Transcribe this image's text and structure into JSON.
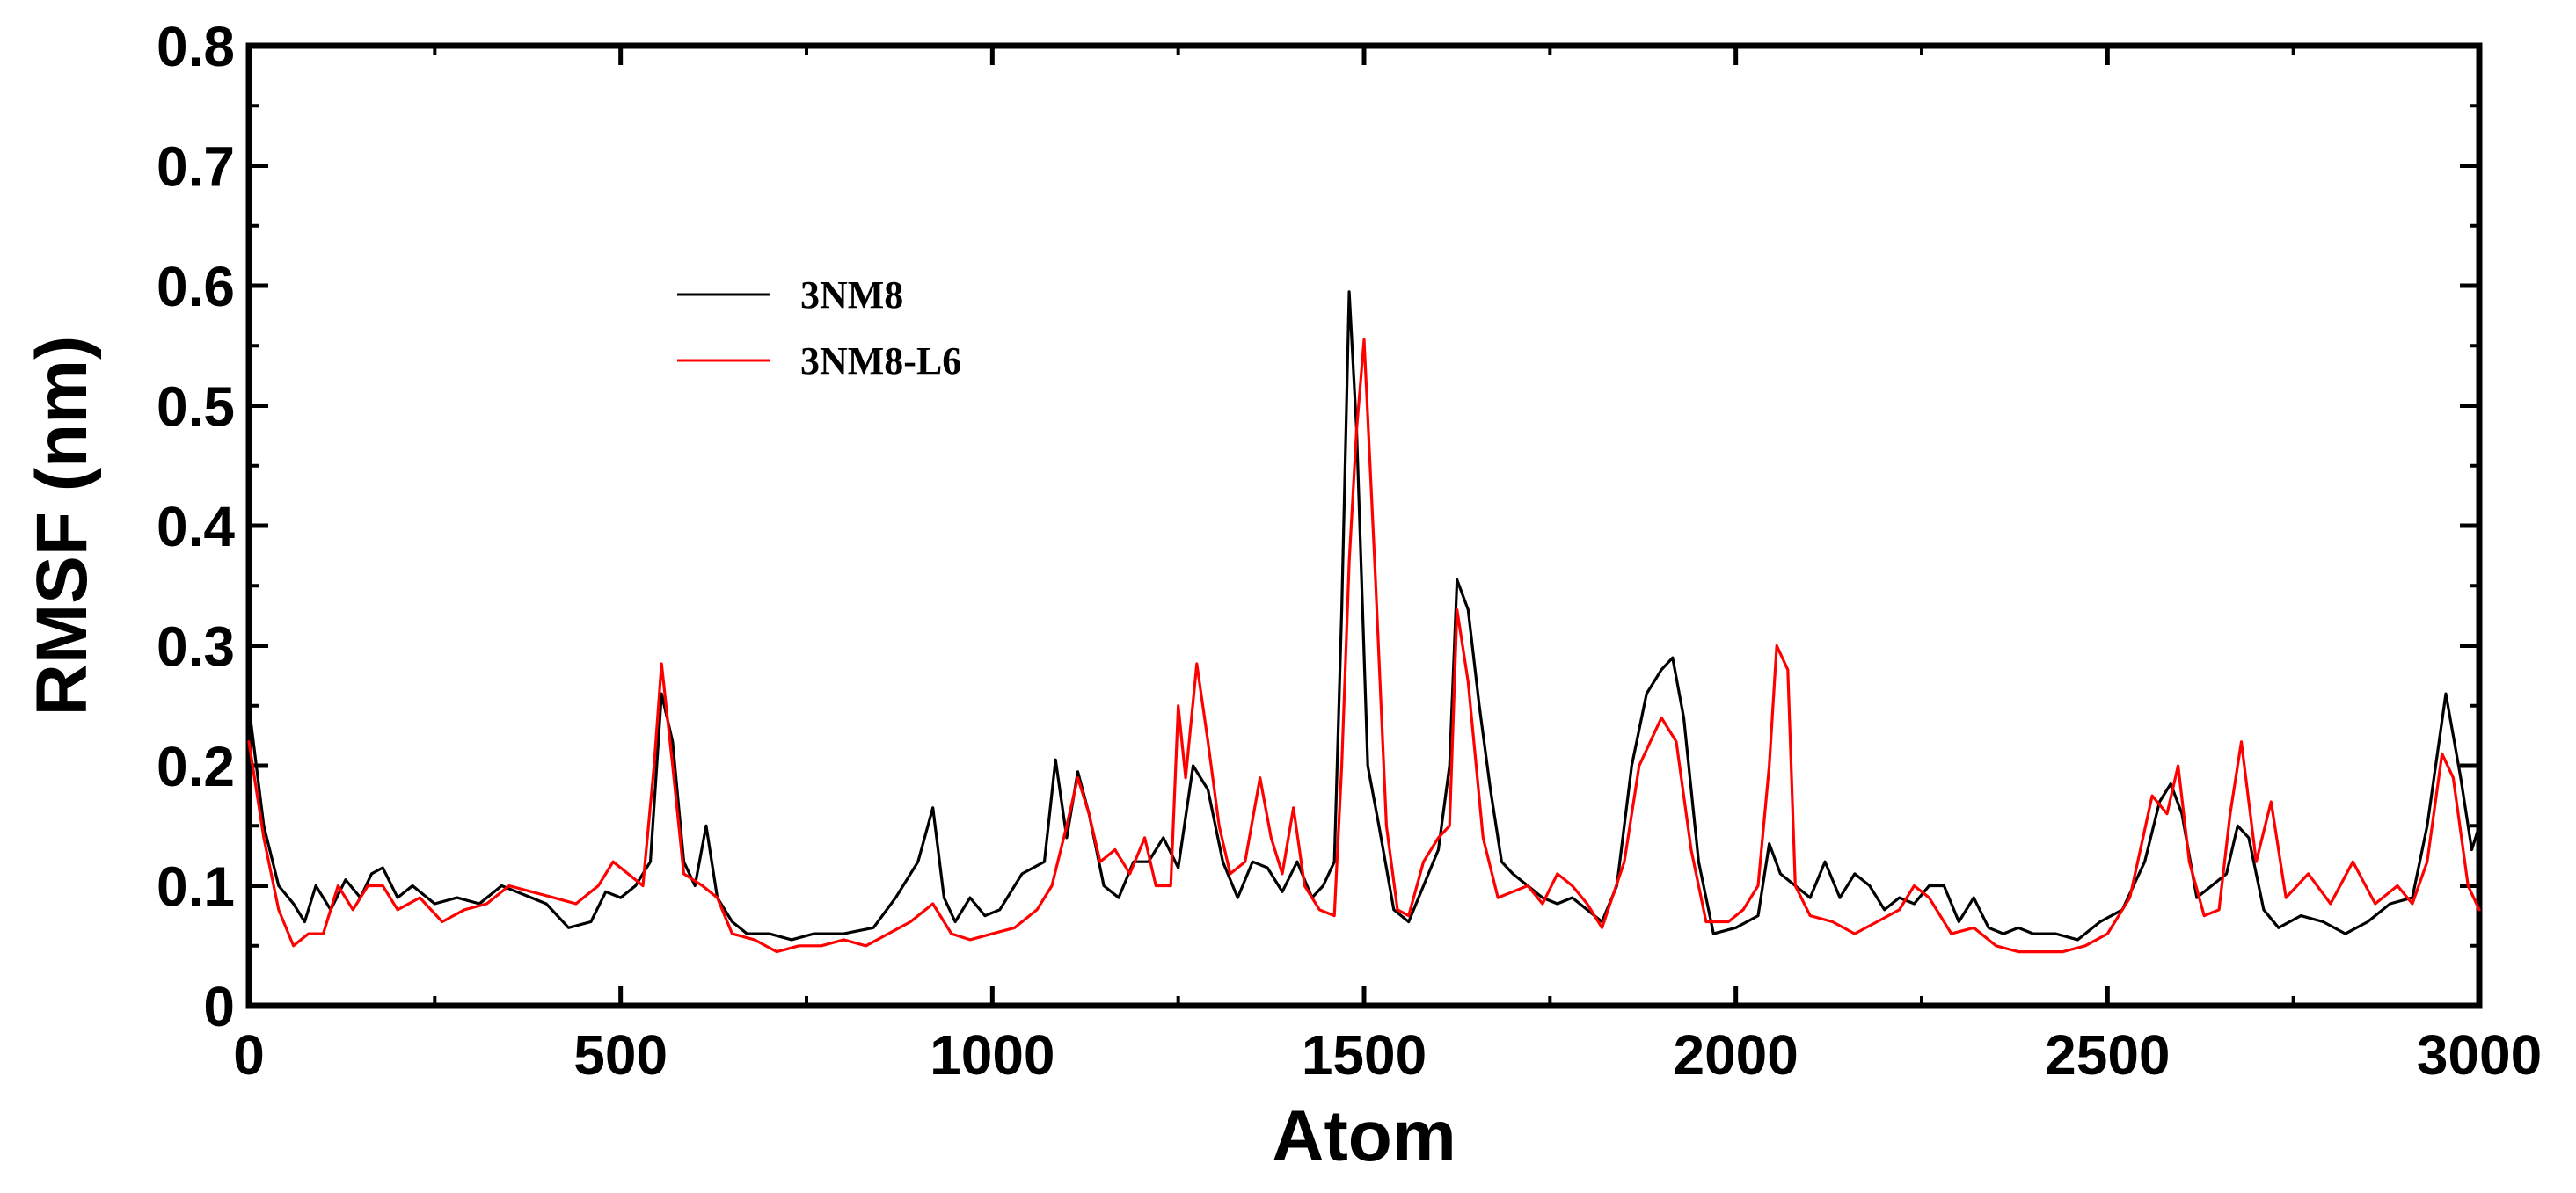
{
  "chart_data": {
    "type": "line",
    "title": "",
    "xlabel": "Atom",
    "ylabel": "RMSF (nm)",
    "xlim": [
      0,
      3000
    ],
    "ylim": [
      0,
      0.8
    ],
    "xticks": [
      0,
      500,
      1000,
      1500,
      2000,
      2500,
      3000
    ],
    "xtick_labels": [
      "0",
      "500",
      "1000",
      "1500",
      "2000",
      "2500",
      "3000"
    ],
    "yticks": [
      0,
      0.1,
      0.2,
      0.3,
      0.4,
      0.5,
      0.6,
      0.7,
      0.8
    ],
    "ytick_labels": [
      "0",
      "0.1",
      "0.2",
      "0.3",
      "0.4",
      "0.5",
      "0.6",
      "0.7",
      "0.8"
    ],
    "legend_position": "upper-left",
    "series": [
      {
        "name": "3NM8",
        "color": "#000000",
        "points": [
          [
            0,
            0.25
          ],
          [
            20,
            0.15
          ],
          [
            40,
            0.1
          ],
          [
            60,
            0.085
          ],
          [
            75,
            0.07
          ],
          [
            90,
            0.1
          ],
          [
            110,
            0.08
          ],
          [
            130,
            0.105
          ],
          [
            150,
            0.09
          ],
          [
            165,
            0.11
          ],
          [
            180,
            0.115
          ],
          [
            200,
            0.09
          ],
          [
            220,
            0.1
          ],
          [
            250,
            0.085
          ],
          [
            280,
            0.09
          ],
          [
            310,
            0.085
          ],
          [
            340,
            0.1
          ],
          [
            360,
            0.095
          ],
          [
            380,
            0.09
          ],
          [
            400,
            0.085
          ],
          [
            430,
            0.065
          ],
          [
            460,
            0.07
          ],
          [
            480,
            0.095
          ],
          [
            500,
            0.09
          ],
          [
            520,
            0.1
          ],
          [
            540,
            0.12
          ],
          [
            555,
            0.26
          ],
          [
            570,
            0.22
          ],
          [
            585,
            0.12
          ],
          [
            600,
            0.1
          ],
          [
            615,
            0.15
          ],
          [
            630,
            0.09
          ],
          [
            650,
            0.07
          ],
          [
            670,
            0.06
          ],
          [
            700,
            0.06
          ],
          [
            730,
            0.055
          ],
          [
            760,
            0.06
          ],
          [
            800,
            0.06
          ],
          [
            840,
            0.065
          ],
          [
            870,
            0.09
          ],
          [
            900,
            0.12
          ],
          [
            920,
            0.165
          ],
          [
            935,
            0.09
          ],
          [
            950,
            0.07
          ],
          [
            970,
            0.09
          ],
          [
            990,
            0.075
          ],
          [
            1010,
            0.08
          ],
          [
            1040,
            0.11
          ],
          [
            1070,
            0.12
          ],
          [
            1085,
            0.205
          ],
          [
            1100,
            0.14
          ],
          [
            1115,
            0.195
          ],
          [
            1130,
            0.16
          ],
          [
            1150,
            0.1
          ],
          [
            1170,
            0.09
          ],
          [
            1190,
            0.12
          ],
          [
            1210,
            0.12
          ],
          [
            1230,
            0.14
          ],
          [
            1250,
            0.115
          ],
          [
            1270,
            0.2
          ],
          [
            1290,
            0.18
          ],
          [
            1310,
            0.12
          ],
          [
            1330,
            0.09
          ],
          [
            1350,
            0.12
          ],
          [
            1370,
            0.115
          ],
          [
            1390,
            0.095
          ],
          [
            1410,
            0.12
          ],
          [
            1430,
            0.09
          ],
          [
            1445,
            0.1
          ],
          [
            1460,
            0.12
          ],
          [
            1470,
            0.33
          ],
          [
            1480,
            0.595
          ],
          [
            1490,
            0.48
          ],
          [
            1505,
            0.2
          ],
          [
            1520,
            0.15
          ],
          [
            1540,
            0.08
          ],
          [
            1560,
            0.07
          ],
          [
            1580,
            0.1
          ],
          [
            1600,
            0.13
          ],
          [
            1615,
            0.2
          ],
          [
            1625,
            0.355
          ],
          [
            1640,
            0.33
          ],
          [
            1655,
            0.25
          ],
          [
            1670,
            0.18
          ],
          [
            1685,
            0.12
          ],
          [
            1700,
            0.11
          ],
          [
            1720,
            0.1
          ],
          [
            1740,
            0.09
          ],
          [
            1760,
            0.085
          ],
          [
            1780,
            0.09
          ],
          [
            1800,
            0.08
          ],
          [
            1820,
            0.07
          ],
          [
            1840,
            0.1
          ],
          [
            1860,
            0.2
          ],
          [
            1880,
            0.26
          ],
          [
            1900,
            0.28
          ],
          [
            1915,
            0.29
          ],
          [
            1930,
            0.24
          ],
          [
            1950,
            0.12
          ],
          [
            1970,
            0.06
          ],
          [
            2000,
            0.065
          ],
          [
            2030,
            0.075
          ],
          [
            2045,
            0.135
          ],
          [
            2060,
            0.11
          ],
          [
            2080,
            0.1
          ],
          [
            2100,
            0.09
          ],
          [
            2120,
            0.12
          ],
          [
            2140,
            0.09
          ],
          [
            2160,
            0.11
          ],
          [
            2180,
            0.1
          ],
          [
            2200,
            0.08
          ],
          [
            2220,
            0.09
          ],
          [
            2240,
            0.085
          ],
          [
            2260,
            0.1
          ],
          [
            2280,
            0.1
          ],
          [
            2300,
            0.07
          ],
          [
            2320,
            0.09
          ],
          [
            2340,
            0.065
          ],
          [
            2360,
            0.06
          ],
          [
            2380,
            0.065
          ],
          [
            2400,
            0.06
          ],
          [
            2430,
            0.06
          ],
          [
            2460,
            0.055
          ],
          [
            2490,
            0.07
          ],
          [
            2520,
            0.08
          ],
          [
            2550,
            0.12
          ],
          [
            2570,
            0.17
          ],
          [
            2585,
            0.185
          ],
          [
            2600,
            0.16
          ],
          [
            2620,
            0.09
          ],
          [
            2640,
            0.1
          ],
          [
            2660,
            0.11
          ],
          [
            2675,
            0.15
          ],
          [
            2690,
            0.14
          ],
          [
            2710,
            0.08
          ],
          [
            2730,
            0.065
          ],
          [
            2760,
            0.075
          ],
          [
            2790,
            0.07
          ],
          [
            2820,
            0.06
          ],
          [
            2850,
            0.07
          ],
          [
            2880,
            0.085
          ],
          [
            2910,
            0.09
          ],
          [
            2930,
            0.15
          ],
          [
            2955,
            0.26
          ],
          [
            2975,
            0.19
          ],
          [
            2990,
            0.13
          ],
          [
            3000,
            0.15
          ]
        ]
      },
      {
        "name": "3NM8-L6",
        "color": "#ff0000",
        "points": [
          [
            0,
            0.22
          ],
          [
            20,
            0.14
          ],
          [
            40,
            0.08
          ],
          [
            60,
            0.05
          ],
          [
            80,
            0.06
          ],
          [
            100,
            0.06
          ],
          [
            120,
            0.1
          ],
          [
            140,
            0.08
          ],
          [
            160,
            0.1
          ],
          [
            180,
            0.1
          ],
          [
            200,
            0.08
          ],
          [
            230,
            0.09
          ],
          [
            260,
            0.07
          ],
          [
            290,
            0.08
          ],
          [
            320,
            0.085
          ],
          [
            350,
            0.1
          ],
          [
            380,
            0.095
          ],
          [
            410,
            0.09
          ],
          [
            440,
            0.085
          ],
          [
            470,
            0.1
          ],
          [
            490,
            0.12
          ],
          [
            510,
            0.11
          ],
          [
            530,
            0.1
          ],
          [
            545,
            0.2
          ],
          [
            555,
            0.285
          ],
          [
            570,
            0.2
          ],
          [
            585,
            0.11
          ],
          [
            610,
            0.1
          ],
          [
            630,
            0.09
          ],
          [
            650,
            0.06
          ],
          [
            680,
            0.055
          ],
          [
            710,
            0.045
          ],
          [
            740,
            0.05
          ],
          [
            770,
            0.05
          ],
          [
            800,
            0.055
          ],
          [
            830,
            0.05
          ],
          [
            860,
            0.06
          ],
          [
            890,
            0.07
          ],
          [
            920,
            0.085
          ],
          [
            945,
            0.06
          ],
          [
            970,
            0.055
          ],
          [
            1000,
            0.06
          ],
          [
            1030,
            0.065
          ],
          [
            1060,
            0.08
          ],
          [
            1080,
            0.1
          ],
          [
            1100,
            0.15
          ],
          [
            1115,
            0.19
          ],
          [
            1130,
            0.16
          ],
          [
            1145,
            0.12
          ],
          [
            1165,
            0.13
          ],
          [
            1185,
            0.11
          ],
          [
            1205,
            0.14
          ],
          [
            1220,
            0.1
          ],
          [
            1240,
            0.1
          ],
          [
            1250,
            0.25
          ],
          [
            1260,
            0.19
          ],
          [
            1275,
            0.285
          ],
          [
            1290,
            0.22
          ],
          [
            1305,
            0.15
          ],
          [
            1320,
            0.11
          ],
          [
            1340,
            0.12
          ],
          [
            1360,
            0.19
          ],
          [
            1375,
            0.14
          ],
          [
            1390,
            0.11
          ],
          [
            1405,
            0.165
          ],
          [
            1420,
            0.1
          ],
          [
            1440,
            0.08
          ],
          [
            1460,
            0.075
          ],
          [
            1470,
            0.2
          ],
          [
            1480,
            0.37
          ],
          [
            1490,
            0.48
          ],
          [
            1500,
            0.555
          ],
          [
            1515,
            0.36
          ],
          [
            1530,
            0.15
          ],
          [
            1545,
            0.08
          ],
          [
            1560,
            0.075
          ],
          [
            1580,
            0.12
          ],
          [
            1600,
            0.14
          ],
          [
            1615,
            0.15
          ],
          [
            1625,
            0.33
          ],
          [
            1640,
            0.27
          ],
          [
            1660,
            0.14
          ],
          [
            1680,
            0.09
          ],
          [
            1700,
            0.095
          ],
          [
            1720,
            0.1
          ],
          [
            1740,
            0.085
          ],
          [
            1760,
            0.11
          ],
          [
            1780,
            0.1
          ],
          [
            1800,
            0.085
          ],
          [
            1820,
            0.065
          ],
          [
            1850,
            0.12
          ],
          [
            1870,
            0.2
          ],
          [
            1900,
            0.24
          ],
          [
            1920,
            0.22
          ],
          [
            1940,
            0.13
          ],
          [
            1960,
            0.07
          ],
          [
            1990,
            0.07
          ],
          [
            2010,
            0.08
          ],
          [
            2030,
            0.1
          ],
          [
            2045,
            0.2
          ],
          [
            2055,
            0.3
          ],
          [
            2070,
            0.28
          ],
          [
            2080,
            0.1
          ],
          [
            2100,
            0.075
          ],
          [
            2130,
            0.07
          ],
          [
            2160,
            0.06
          ],
          [
            2190,
            0.07
          ],
          [
            2220,
            0.08
          ],
          [
            2240,
            0.1
          ],
          [
            2260,
            0.09
          ],
          [
            2290,
            0.06
          ],
          [
            2320,
            0.065
          ],
          [
            2350,
            0.05
          ],
          [
            2380,
            0.045
          ],
          [
            2410,
            0.045
          ],
          [
            2440,
            0.045
          ],
          [
            2470,
            0.05
          ],
          [
            2500,
            0.06
          ],
          [
            2530,
            0.09
          ],
          [
            2560,
            0.175
          ],
          [
            2580,
            0.16
          ],
          [
            2595,
            0.2
          ],
          [
            2610,
            0.12
          ],
          [
            2630,
            0.075
          ],
          [
            2650,
            0.08
          ],
          [
            2665,
            0.16
          ],
          [
            2680,
            0.22
          ],
          [
            2700,
            0.12
          ],
          [
            2720,
            0.17
          ],
          [
            2740,
            0.09
          ],
          [
            2770,
            0.11
          ],
          [
            2800,
            0.085
          ],
          [
            2830,
            0.12
          ],
          [
            2860,
            0.085
          ],
          [
            2890,
            0.1
          ],
          [
            2910,
            0.085
          ],
          [
            2930,
            0.12
          ],
          [
            2950,
            0.21
          ],
          [
            2965,
            0.19
          ],
          [
            2985,
            0.1
          ],
          [
            3000,
            0.08
          ]
        ]
      }
    ]
  }
}
